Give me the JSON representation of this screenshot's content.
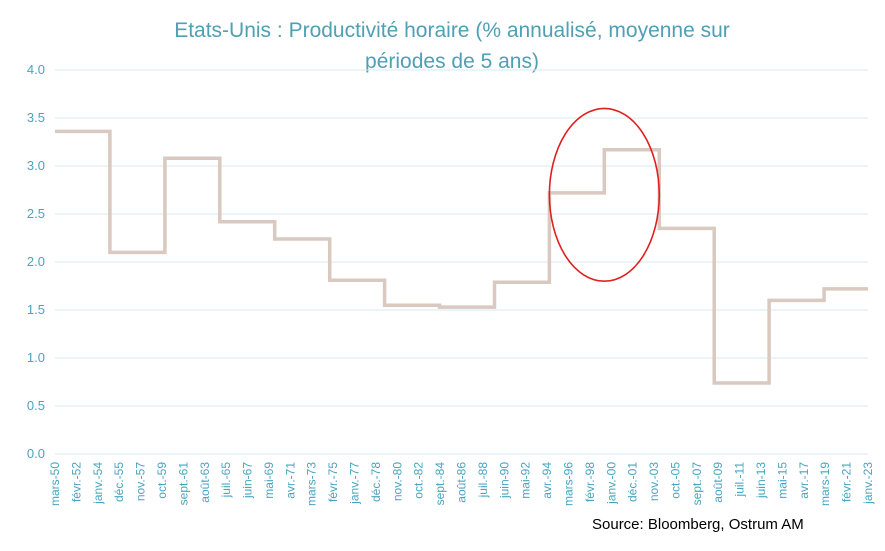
{
  "chart_data": {
    "type": "line",
    "title_lines": [
      "Etats-Unis : Productivité horaire (% annualisé, moyenne sur",
      "périodes de 5 ans)"
    ],
    "source": "Source:  Bloomberg,  Ostrum  AM",
    "ylim": [
      0,
      4
    ],
    "yticks": [
      "0.0",
      "0.5",
      "1.0",
      "1.5",
      "2.0",
      "2.5",
      "3.0",
      "3.5",
      "4.0"
    ],
    "grid": true,
    "xticks": [
      "mars-50",
      "févr.-52",
      "janv.-54",
      "déc.-55",
      "nov.-57",
      "oct.-59",
      "sept.-61",
      "août-63",
      "juil.-65",
      "juin-67",
      "mai-69",
      "avr.-71",
      "mars-73",
      "févr.-75",
      "janv.-77",
      "déc.-78",
      "nov.-80",
      "oct.-82",
      "sept.-84",
      "août-86",
      "juil.-88",
      "juin-90",
      "mai-92",
      "avr.-94",
      "mars-96",
      "févr.-98",
      "janv.-00",
      "déc.-01",
      "nov.-03",
      "oct.-05",
      "sept.-07",
      "août-09",
      "juil.-11",
      "juin-13",
      "mai-15",
      "avr.-17",
      "mars-19",
      "févr.-21",
      "janv.-23"
    ],
    "series": [
      {
        "color": "#d9c9c0",
        "x": [
          "1950-03",
          "1955-03",
          "1955-03",
          "1960-03",
          "1960-03",
          "1965-03",
          "1965-03",
          "1970-03",
          "1970-03",
          "1975-03",
          "1975-03",
          "1980-03",
          "1980-03",
          "1985-03",
          "1985-03",
          "1990-03",
          "1990-03",
          "1995-03",
          "1995-03",
          "2000-03",
          "2000-03",
          "2005-03",
          "2005-03",
          "2010-03",
          "2010-03",
          "2015-03",
          "2015-03",
          "2020-03",
          "2020-03",
          "2024-03"
        ],
        "values": [
          3.36,
          3.36,
          2.1,
          2.1,
          3.08,
          3.08,
          2.42,
          2.42,
          2.24,
          2.24,
          1.81,
          1.81,
          1.55,
          1.55,
          1.53,
          1.53,
          1.79,
          1.79,
          2.72,
          2.72,
          3.17,
          3.17,
          2.35,
          2.35,
          0.74,
          0.74,
          1.6,
          1.6,
          1.72,
          1.72
        ]
      }
    ],
    "annotation": {
      "shape": "ellipse",
      "color": "#e02020",
      "x_from": "1995-03",
      "x_to": "2005-03",
      "y_from": 1.8,
      "y_to": 3.6
    }
  }
}
